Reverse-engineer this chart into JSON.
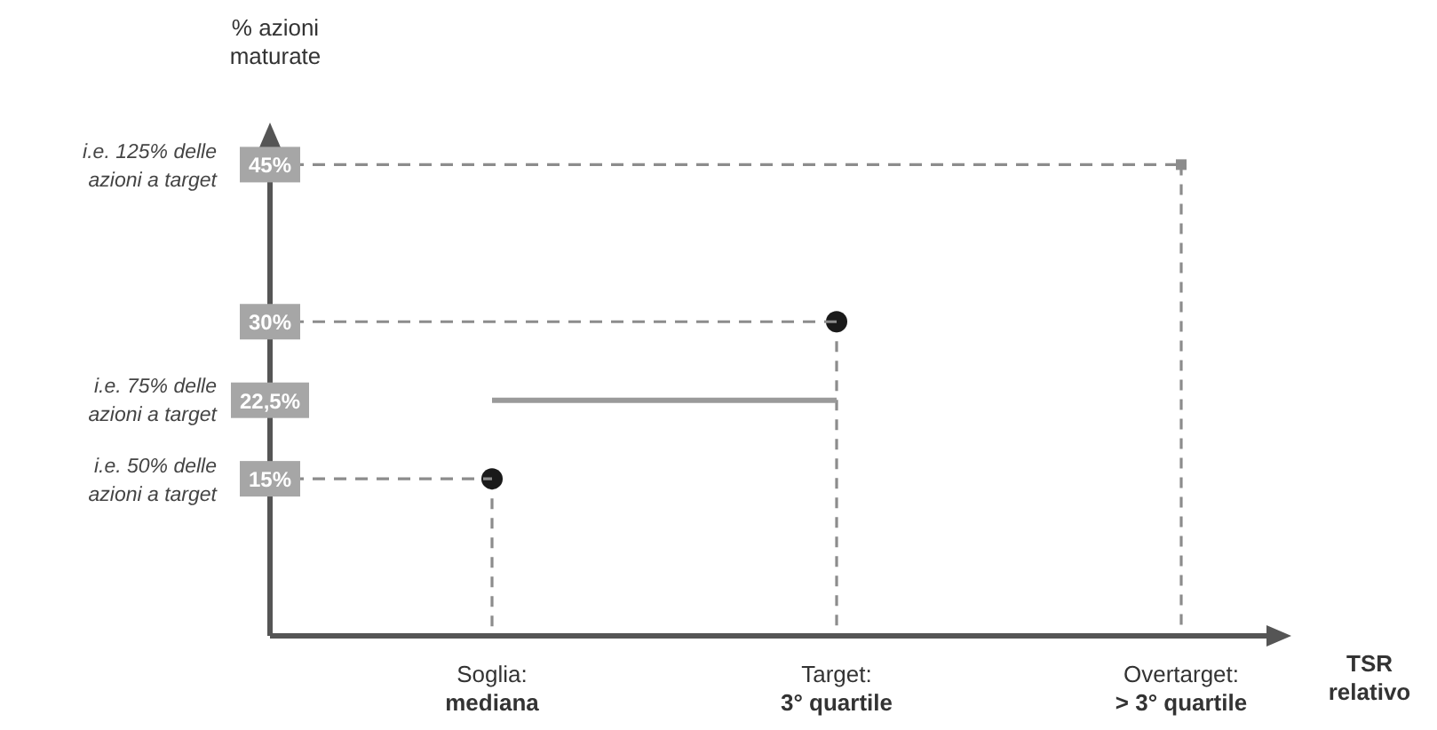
{
  "chart_data": {
    "type": "line",
    "ylabel": "% azioni\nmaturate",
    "xlabel": "TSR\nrelativo",
    "categories": [
      "Soglia:\nmediana",
      "Target:\n3° quartile",
      "Overtarget:\n> 3° quartile"
    ],
    "ylim": [
      0,
      48
    ],
    "yticks": [
      {
        "value": 15,
        "label": "15%"
      },
      {
        "value": 22.5,
        "label": "22,5%"
      },
      {
        "value": 30,
        "label": "30%"
      },
      {
        "value": 45,
        "label": "45%"
      }
    ],
    "series": [
      {
        "type": "scatter",
        "color": "#1a1a1a",
        "marker": "circle",
        "values": [
          15,
          30,
          null
        ]
      },
      {
        "color": "#9a9a9a",
        "line_style": "solid",
        "values": [
          22.5,
          22.5,
          null
        ]
      },
      {
        "type": "scatter",
        "color": "#8c8c8c",
        "marker": "square",
        "values": [
          null,
          null,
          45
        ]
      }
    ],
    "annotations": [
      "i.e. 125% delle\nazioni a target",
      "i.e. 75% delle\nazioni a target",
      "i.e. 50% delle\nazioni a target"
    ],
    "ref_lines": [
      {
        "axis": "y",
        "value": 45,
        "color": "#8c8c8c",
        "line_style": "dashed"
      },
      {
        "axis": "y",
        "value": 30,
        "color": "#8c8c8c",
        "line_style": "dashed"
      },
      {
        "axis": "y",
        "value": 15,
        "color": "#8c8c8c",
        "line_style": "dashed"
      }
    ],
    "grid": false
  }
}
